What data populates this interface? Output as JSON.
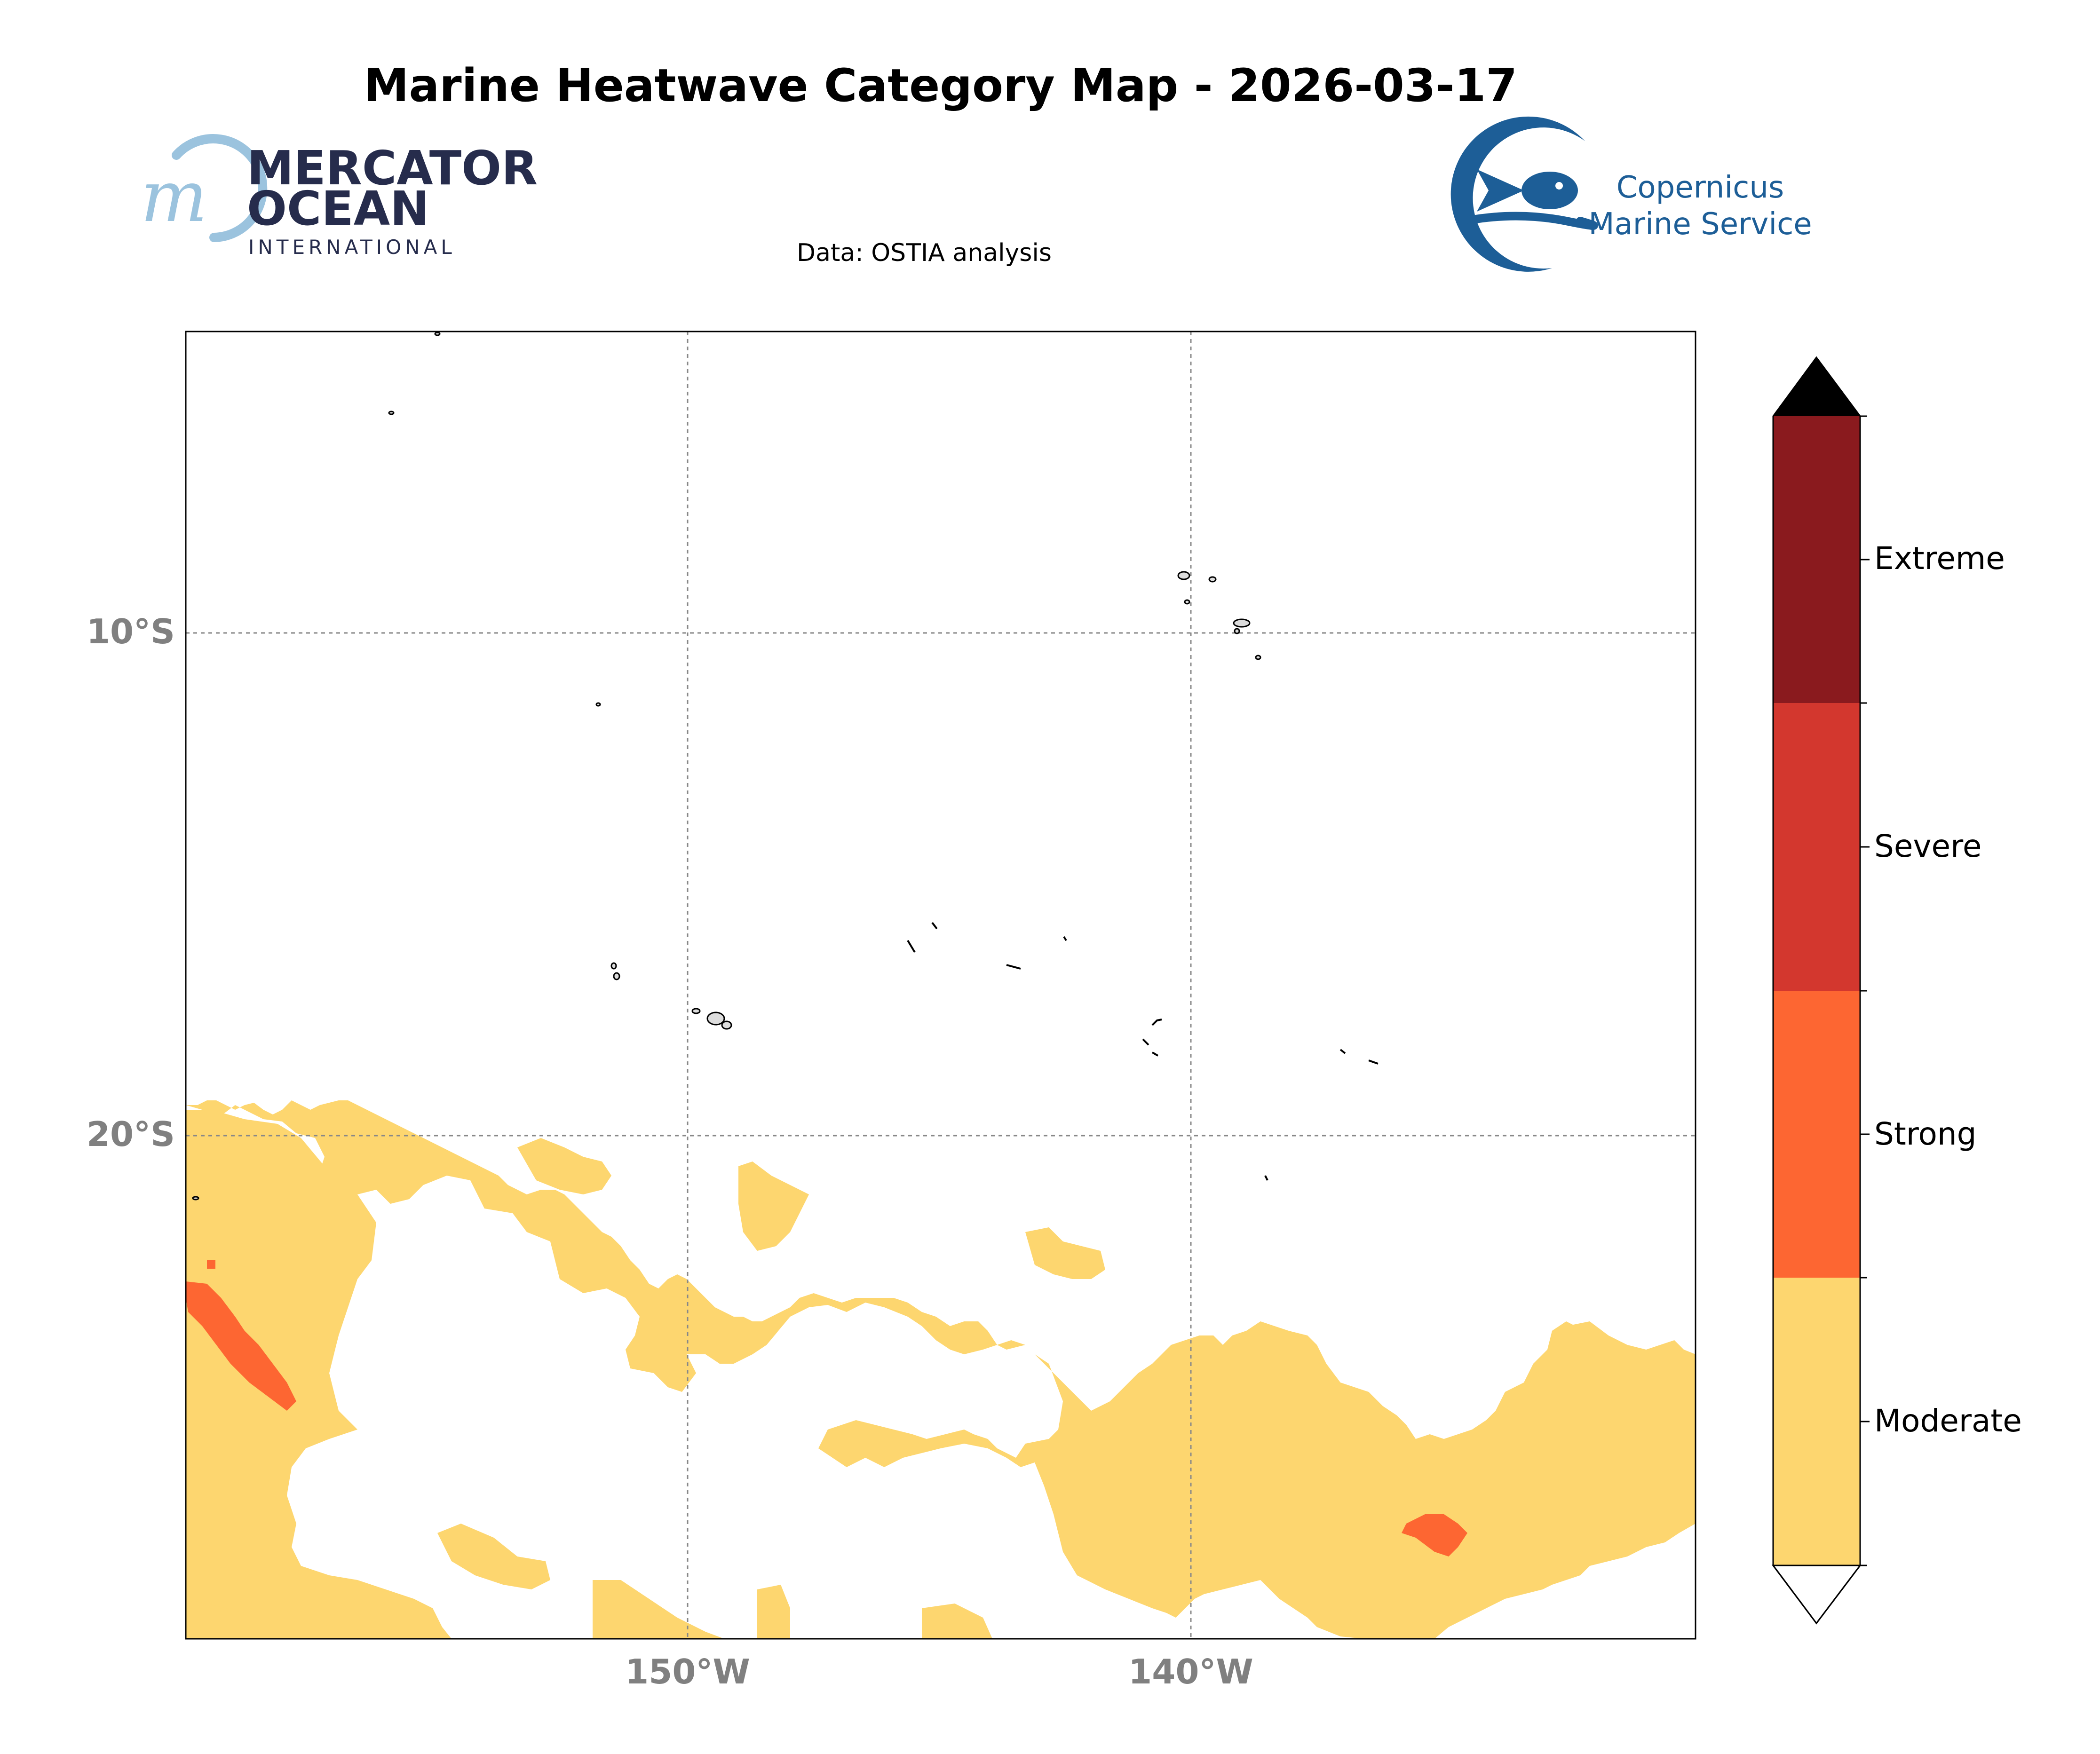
{
  "title": "Marine Heatwave Category Map - 2026-03-17",
  "subtitle": "Data: OSTIA analysis",
  "logos": {
    "left": {
      "line1": "MERCATOR",
      "line2": "OCEAN",
      "line3": "INTERNATIONAL",
      "mark": "m"
    },
    "right": {
      "line1": "Copernicus",
      "line2": "Marine Service",
      "icon": "fish-icon"
    }
  },
  "map": {
    "lat_labels": [
      "10°S",
      "20°S"
    ],
    "lon_labels": [
      "150°W",
      "140°W"
    ],
    "lon_range": [
      -160,
      -130
    ],
    "lat_range": [
      -30,
      -4
    ],
    "gridlines": true,
    "ocean_color": "#ffffff",
    "category_colors": {
      "Moderate": "#fdd66f",
      "Strong": "#fd6632",
      "Severe": "#d3372e",
      "Extreme": "#8a1a1e"
    }
  },
  "colorbar": {
    "labels": [
      "Moderate",
      "Strong",
      "Severe",
      "Extreme"
    ],
    "colors": [
      "#fdd66f",
      "#fd6632",
      "#d3372e",
      "#8a1a1e"
    ],
    "over_color": "#000000",
    "under_color": "#ffffff"
  }
}
